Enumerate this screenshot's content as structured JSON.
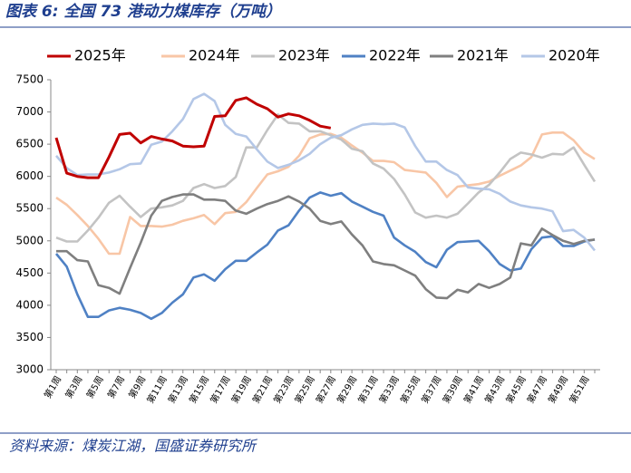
{
  "chart_data": {
    "type": "line",
    "title": "图表 6:  全国 73 港动力煤库存（万吨）",
    "source": "资料来源：煤炭江湖，国盛证券研究所",
    "categories": [
      "第1周",
      null,
      "第3周",
      null,
      "第5周",
      null,
      "第7周",
      null,
      "第9周",
      null,
      "第11周",
      null,
      "第13周",
      null,
      "第15周",
      null,
      "第17周",
      null,
      "第19周",
      null,
      "第21周",
      null,
      "第23周",
      null,
      "第25周",
      null,
      "第27周",
      null,
      "第29周",
      null,
      "第31周",
      null,
      "第33周",
      null,
      "第35周",
      null,
      "第37周",
      null,
      "第39周",
      null,
      "第41周",
      null,
      "第43周",
      null,
      "第45周",
      null,
      "第47周",
      null,
      "第49周",
      null,
      "第51周",
      null
    ],
    "ylim": [
      3000,
      7500
    ],
    "yticks": [
      3000,
      3500,
      4000,
      4500,
      5000,
      5500,
      6000,
      6500,
      7000,
      7500
    ],
    "series": [
      {
        "name": "2025年",
        "color": "#c00000",
        "values": [
          6600,
          6050,
          6000,
          5980,
          5980,
          6300,
          6650,
          6670,
          6520,
          6620,
          6580,
          6550,
          6470,
          6460,
          6470,
          6930,
          6940,
          7180,
          7220,
          7120,
          7050,
          6920,
          6970,
          6940,
          6870,
          6780,
          6750,
          null,
          null,
          null,
          null,
          null,
          null,
          null,
          null,
          null,
          null,
          null,
          null,
          null,
          null,
          null,
          null,
          null,
          null,
          null,
          null,
          null,
          null,
          null,
          null,
          null
        ]
      },
      {
        "name": "2024年",
        "color": "#f8c6a6",
        "values": [
          5670,
          5560,
          5400,
          5230,
          5030,
          4800,
          4800,
          5370,
          5230,
          5230,
          5220,
          5250,
          5310,
          5350,
          5400,
          5260,
          5430,
          5450,
          5600,
          5820,
          6030,
          6080,
          6150,
          6320,
          6590,
          6650,
          6660,
          6600,
          6480,
          6370,
          6240,
          6240,
          6220,
          6100,
          6080,
          6060,
          5900,
          5680,
          5840,
          5860,
          5880,
          5920,
          6010,
          6090,
          6170,
          6300,
          6650,
          6680,
          6680,
          6560,
          6370,
          6270
        ]
      },
      {
        "name": "2023年",
        "color": "#c3c3c3",
        "values": [
          5050,
          4990,
          4990,
          5160,
          5360,
          5590,
          5700,
          5530,
          5370,
          5500,
          5520,
          5550,
          5620,
          5820,
          5880,
          5820,
          5850,
          5990,
          6450,
          6450,
          6720,
          6960,
          6830,
          6820,
          6700,
          6700,
          6640,
          6570,
          6430,
          6390,
          6200,
          6120,
          5960,
          5720,
          5440,
          5360,
          5390,
          5360,
          5420,
          5580,
          5750,
          5870,
          6060,
          6270,
          6370,
          6340,
          6290,
          6350,
          6340,
          6450,
          6180,
          5920
        ]
      },
      {
        "name": "2022年",
        "color": "#4f81c4",
        "values": [
          4800,
          4600,
          4170,
          3820,
          3820,
          3920,
          3960,
          3930,
          3880,
          3790,
          3880,
          4040,
          4170,
          4430,
          4480,
          4380,
          4560,
          4690,
          4690,
          4820,
          4940,
          5160,
          5240,
          5470,
          5670,
          5750,
          5700,
          5740,
          5610,
          5530,
          5450,
          5390,
          5050,
          4930,
          4830,
          4670,
          4590,
          4860,
          4980,
          4990,
          5000,
          4840,
          4640,
          4540,
          4570,
          4870,
          5050,
          5070,
          4920,
          4920,
          4990,
          5020
        ]
      },
      {
        "name": "2021年",
        "color": "#7f7f7f",
        "values": [
          4840,
          4840,
          4700,
          4680,
          4310,
          4270,
          4180,
          4580,
          4970,
          5390,
          5620,
          5680,
          5720,
          5720,
          5640,
          5640,
          5620,
          5470,
          5420,
          5500,
          5570,
          5620,
          5690,
          5610,
          5500,
          5310,
          5260,
          5300,
          5100,
          4930,
          4680,
          4640,
          4620,
          4540,
          4460,
          4250,
          4120,
          4110,
          4240,
          4200,
          4330,
          4270,
          4330,
          4430,
          4960,
          4930,
          5190,
          5090,
          5000,
          4950,
          5000,
          5020
        ]
      },
      {
        "name": "2020年",
        "color": "#b4c7e7",
        "values": [
          6320,
          6130,
          6020,
          6030,
          6030,
          6060,
          6110,
          6190,
          6200,
          6490,
          6540,
          6700,
          6890,
          7200,
          7280,
          7170,
          6800,
          6660,
          6620,
          6420,
          6230,
          6130,
          6180,
          6250,
          6350,
          6500,
          6600,
          6640,
          6730,
          6800,
          6820,
          6810,
          6820,
          6760,
          6470,
          6230,
          6230,
          6100,
          6020,
          5830,
          5810,
          5800,
          5730,
          5610,
          5550,
          5520,
          5500,
          5460,
          5150,
          5170,
          5050,
          4850
        ]
      }
    ]
  }
}
